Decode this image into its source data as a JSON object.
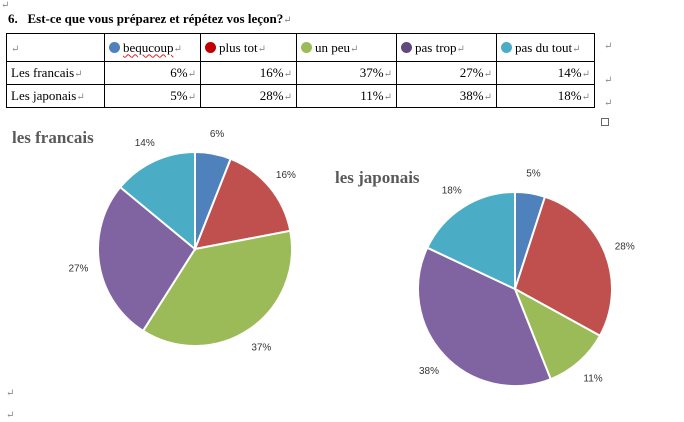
{
  "question": {
    "number": "6.",
    "text": "Est-ce que vous préparez et répétez vos leçon?"
  },
  "legend": [
    {
      "label": "bequcoup",
      "color": "#4f81bd"
    },
    {
      "label": "plus tot",
      "color": "#c00000"
    },
    {
      "label": "un peu",
      "color": "#9bbb59"
    },
    {
      "label": "pas trop",
      "color": "#604a7b"
    },
    {
      "label": "pas du tout",
      "color": "#4bacc6"
    }
  ],
  "rows": [
    {
      "label": "Les francais",
      "values": [
        "6%",
        "16%",
        "37%",
        "27%",
        "14%"
      ]
    },
    {
      "label": "Les japonais",
      "values": [
        "5%",
        "28%",
        "11%",
        "38%",
        "18%"
      ]
    }
  ],
  "chart_data": [
    {
      "type": "pie",
      "title": "les francais",
      "categories": [
        "bequcoup",
        "plus tot",
        "un peu",
        "pas trop",
        "pas du tout"
      ],
      "values": [
        6,
        16,
        37,
        27,
        14
      ],
      "labels": [
        "6%",
        "16%",
        "37%",
        "27%",
        "14%"
      ],
      "colors": [
        "#4f81bd",
        "#c0504d",
        "#9bbb59",
        "#8064a2",
        "#4bacc6"
      ]
    },
    {
      "type": "pie",
      "title": "les japonais",
      "categories": [
        "bequcoup",
        "plus tot",
        "un peu",
        "pas trop",
        "pas du tout"
      ],
      "values": [
        5,
        28,
        11,
        38,
        18
      ],
      "labels": [
        "5%",
        "28%",
        "11%",
        "38%",
        "18%"
      ],
      "colors": [
        "#4f81bd",
        "#c0504d",
        "#9bbb59",
        "#8064a2",
        "#4bacc6"
      ]
    }
  ]
}
